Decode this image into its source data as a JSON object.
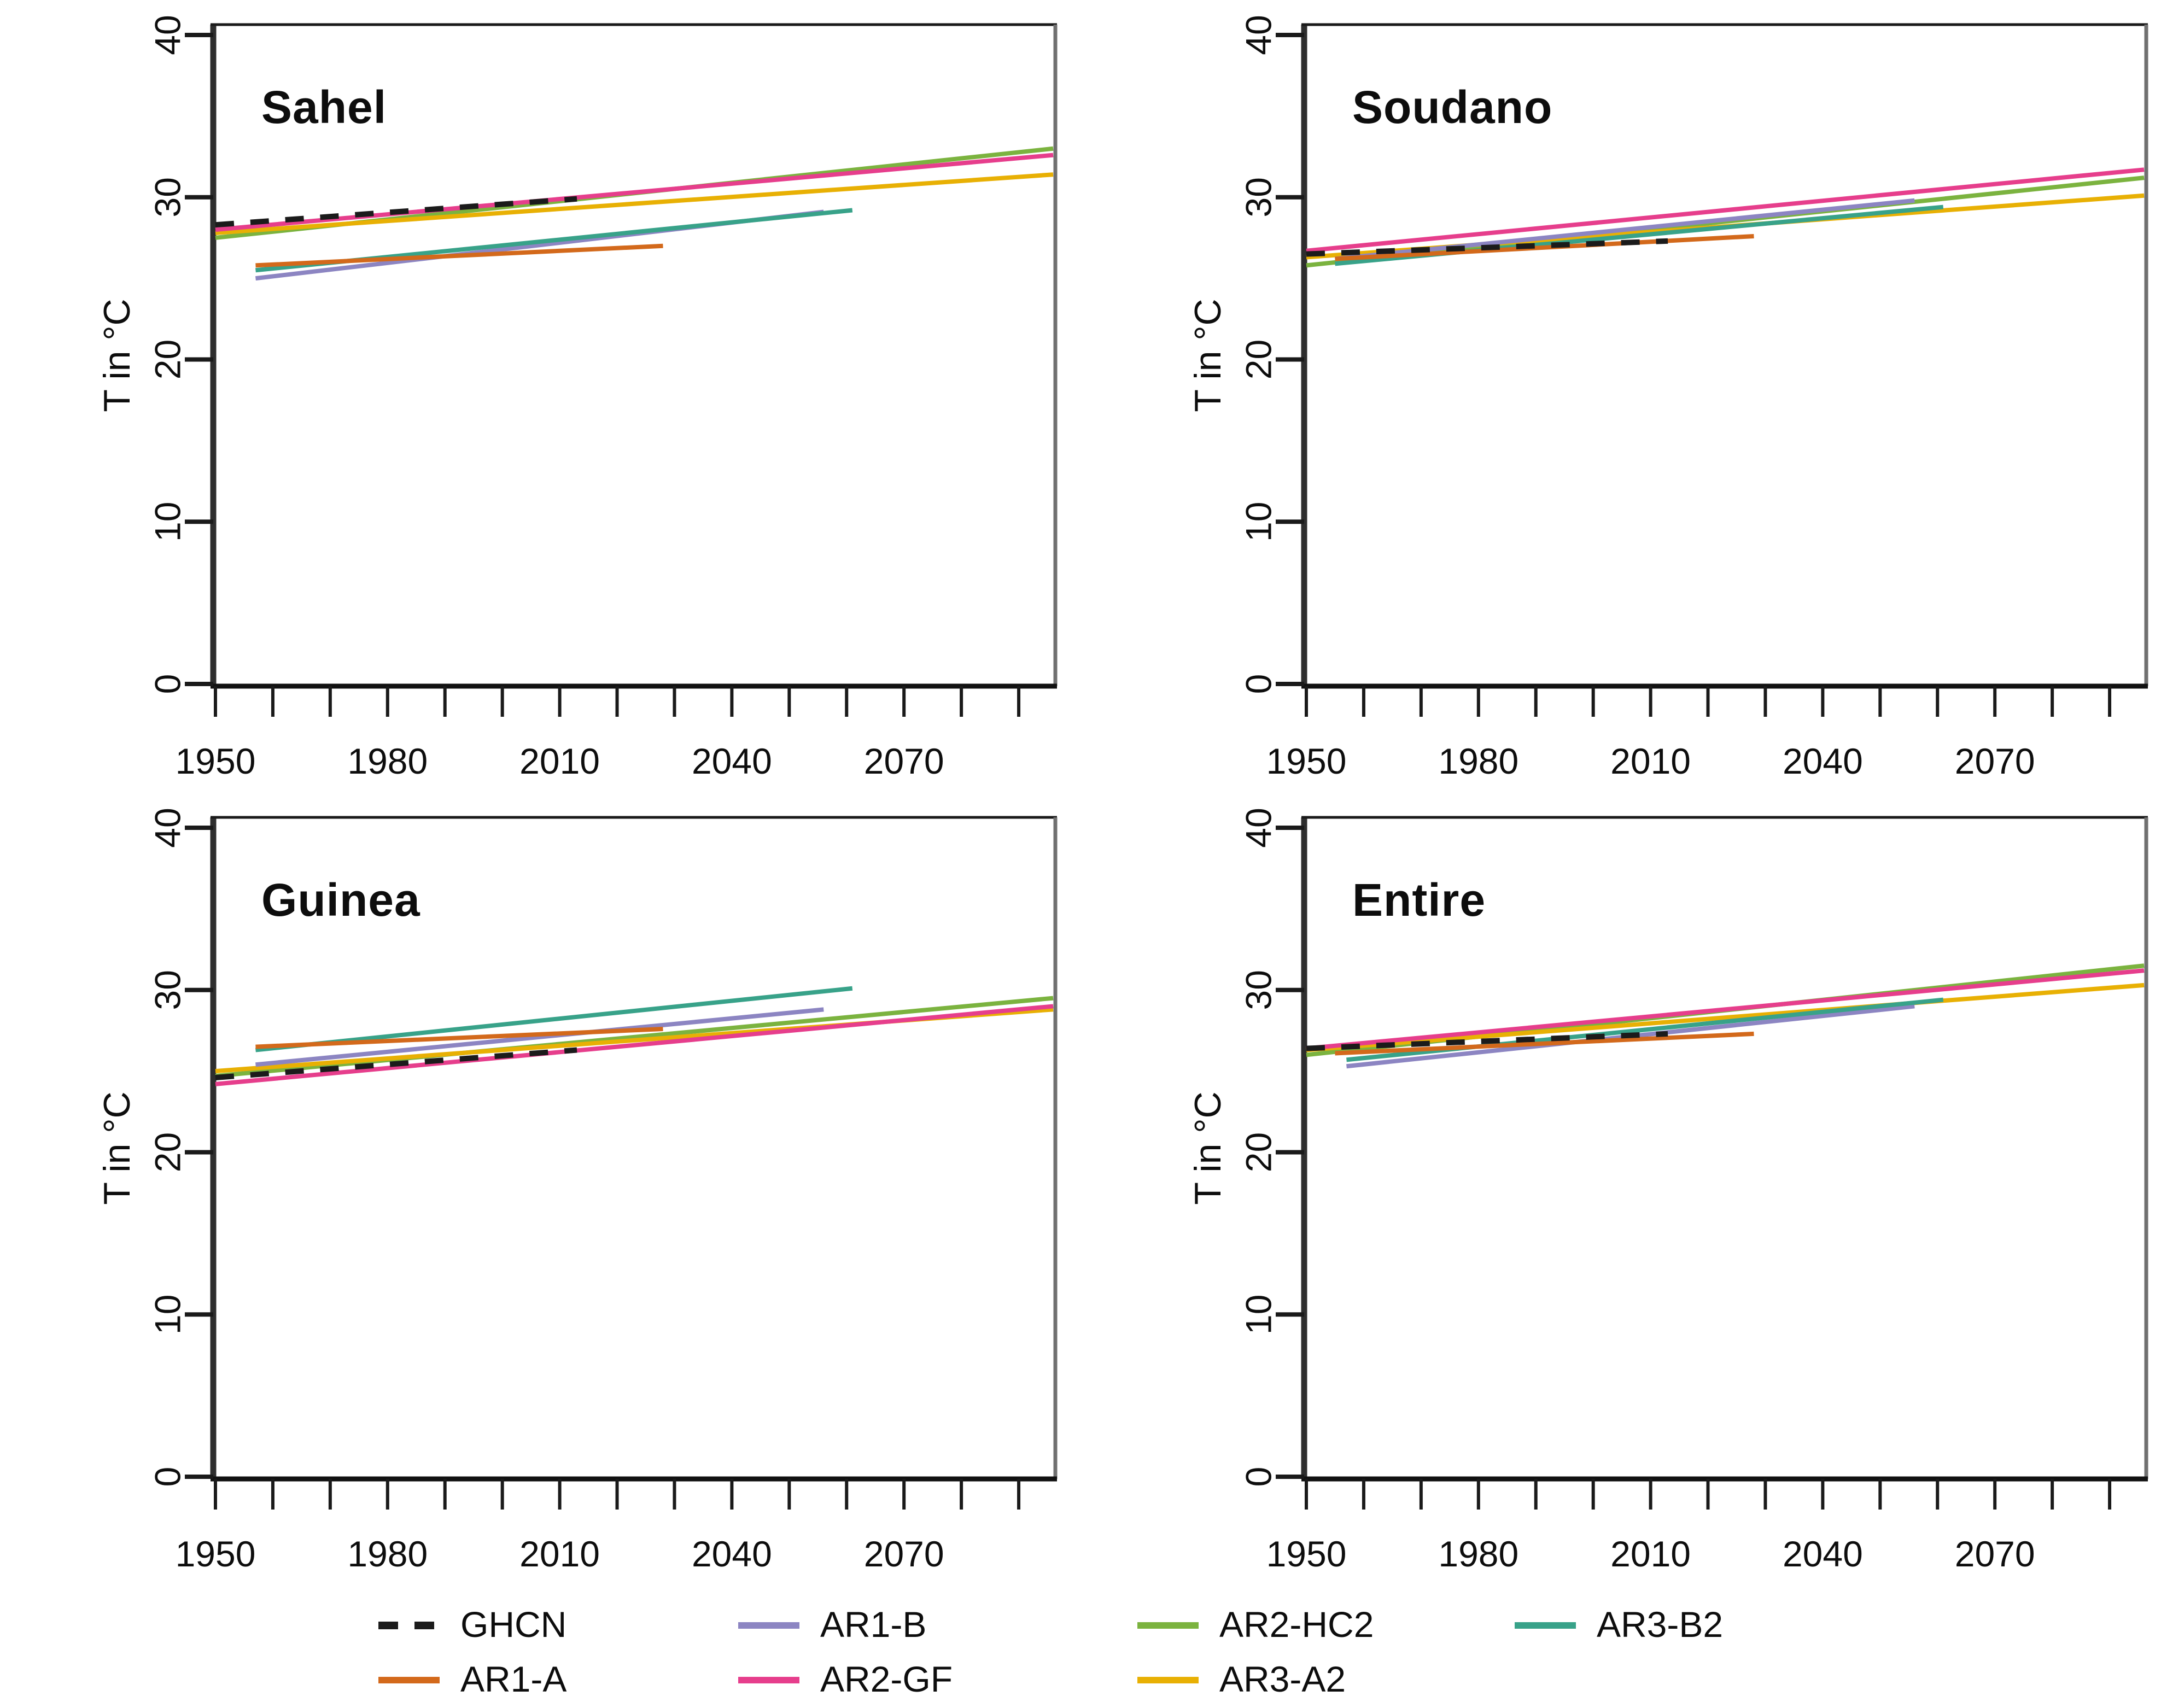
{
  "figure": {
    "type": "multi-panel-line-chart",
    "panel_titles": [
      "Sahel",
      "Soudano",
      "Guinea",
      "Entire"
    ]
  },
  "colors": {
    "ghcn": "#1b1b1b",
    "ar1a": "#D3691B",
    "ar1b": "#8C85C2",
    "ar2gf": "#E63E8C",
    "ar2hc2": "#7BB33F",
    "ar3a2": "#E8B004",
    "ar3b2": "#38A289",
    "frame_dark": "#222222",
    "frame_gray": "#707070",
    "tick": "#1a1a1a",
    "text": "#0d0d0d"
  },
  "legend": {
    "items": [
      {
        "label": "GHCN",
        "color": "ghcn",
        "dashed": true,
        "row": 0,
        "col": 0
      },
      {
        "label": "AR1-B",
        "color": "ar1b",
        "dashed": false,
        "row": 0,
        "col": 1
      },
      {
        "label": "AR2-HC2",
        "color": "ar2hc2",
        "dashed": false,
        "row": 0,
        "col": 2
      },
      {
        "label": "AR3-B2",
        "color": "ar3b2",
        "dashed": false,
        "row": 0,
        "col": 3
      },
      {
        "label": "AR1-A",
        "color": "ar1a",
        "dashed": false,
        "row": 1,
        "col": 0
      },
      {
        "label": "AR2-GF",
        "color": "ar2gf",
        "dashed": false,
        "row": 1,
        "col": 1
      },
      {
        "label": "AR3-A2",
        "color": "ar3a2",
        "dashed": false,
        "row": 1,
        "col": 2
      }
    ]
  },
  "chart_data": [
    {
      "type": "line",
      "title": "Sahel",
      "xlabel": "",
      "ylabel": "T in °C",
      "xlim": [
        1944,
        2097
      ],
      "ylim": [
        0,
        40
      ],
      "x_ticks": [
        1950,
        1960,
        1970,
        1980,
        1990,
        2000,
        2010,
        2020,
        2030,
        2040,
        2050,
        2060,
        2070,
        2080,
        2090
      ],
      "x_tick_labels": [
        1950,
        1980,
        2010,
        2040,
        2070
      ],
      "y_ticks": [
        0,
        10,
        20,
        30,
        40
      ],
      "grid": false,
      "series": [
        {
          "name": "AR2-HC2",
          "color": "ar2hc2",
          "dashed": false,
          "points": [
            [
              1950,
              27.5
            ],
            [
              2096,
              33.0
            ]
          ]
        },
        {
          "name": "AR3-A2",
          "color": "ar3a2",
          "dashed": false,
          "points": [
            [
              1950,
              27.8
            ],
            [
              2096,
              31.4
            ]
          ]
        },
        {
          "name": "AR2-GF",
          "color": "ar2gf",
          "dashed": false,
          "points": [
            [
              1950,
              28.0
            ],
            [
              2096,
              32.6
            ]
          ]
        },
        {
          "name": "AR1-B",
          "color": "ar1b",
          "dashed": false,
          "points": [
            [
              1957,
              25.0
            ],
            [
              2056,
              29.1
            ]
          ]
        },
        {
          "name": "AR3-B2",
          "color": "ar3b2",
          "dashed": false,
          "points": [
            [
              1957,
              25.5
            ],
            [
              2061,
              29.2
            ]
          ]
        },
        {
          "name": "AR1-A",
          "color": "ar1a",
          "dashed": false,
          "points": [
            [
              1957,
              25.8
            ],
            [
              2028,
              27.0
            ]
          ]
        },
        {
          "name": "GHCN",
          "color": "ghcn",
          "dashed": true,
          "points": [
            [
              1950,
              28.3
            ],
            [
              2013,
              29.9
            ]
          ]
        }
      ]
    },
    {
      "type": "line",
      "title": "Soudano",
      "xlabel": "",
      "ylabel": "T in °C",
      "xlim": [
        1944,
        2097
      ],
      "ylim": [
        0,
        40
      ],
      "x_ticks": [
        1950,
        1960,
        1970,
        1980,
        1990,
        2000,
        2010,
        2020,
        2030,
        2040,
        2050,
        2060,
        2070,
        2080,
        2090
      ],
      "x_tick_labels": [
        1950,
        1980,
        2010,
        2040,
        2070
      ],
      "y_ticks": [
        0,
        10,
        20,
        30,
        40
      ],
      "grid": false,
      "series": [
        {
          "name": "AR2-HC2",
          "color": "ar2hc2",
          "dashed": false,
          "points": [
            [
              1950,
              25.8
            ],
            [
              2096,
              31.2
            ]
          ]
        },
        {
          "name": "AR3-A2",
          "color": "ar3a2",
          "dashed": false,
          "points": [
            [
              1950,
              26.3
            ],
            [
              2096,
              30.1
            ]
          ]
        },
        {
          "name": "AR2-GF",
          "color": "ar2gf",
          "dashed": false,
          "points": [
            [
              1950,
              26.7
            ],
            [
              2096,
              31.7
            ]
          ]
        },
        {
          "name": "AR1-B",
          "color": "ar1b",
          "dashed": false,
          "points": [
            [
              1955,
              26.2
            ],
            [
              2056,
              29.8
            ]
          ]
        },
        {
          "name": "AR3-B2",
          "color": "ar3b2",
          "dashed": false,
          "points": [
            [
              1955,
              25.9
            ],
            [
              2061,
              29.4
            ]
          ]
        },
        {
          "name": "AR1-A",
          "color": "ar1a",
          "dashed": false,
          "points": [
            [
              1955,
              26.2
            ],
            [
              2028,
              27.6
            ]
          ]
        },
        {
          "name": "GHCN",
          "color": "ghcn",
          "dashed": true,
          "points": [
            [
              1950,
              26.5
            ],
            [
              2013,
              27.3
            ]
          ]
        }
      ]
    },
    {
      "type": "line",
      "title": "Guinea",
      "xlabel": "",
      "ylabel": "T in °C",
      "xlim": [
        1944,
        2097
      ],
      "ylim": [
        0,
        40
      ],
      "x_ticks": [
        1950,
        1960,
        1970,
        1980,
        1990,
        2000,
        2010,
        2020,
        2030,
        2040,
        2050,
        2060,
        2070,
        2080,
        2090
      ],
      "x_tick_labels": [
        1950,
        1980,
        2010,
        2040,
        2070
      ],
      "y_ticks": [
        0,
        10,
        20,
        30,
        40
      ],
      "grid": false,
      "series": [
        {
          "name": "AR2-HC2",
          "color": "ar2hc2",
          "dashed": false,
          "points": [
            [
              1950,
              24.7
            ],
            [
              2096,
              29.5
            ]
          ]
        },
        {
          "name": "AR3-A2",
          "color": "ar3a2",
          "dashed": false,
          "points": [
            [
              1950,
              25.0
            ],
            [
              2096,
              28.8
            ]
          ]
        },
        {
          "name": "AR2-GF",
          "color": "ar2gf",
          "dashed": false,
          "points": [
            [
              1950,
              24.2
            ],
            [
              2096,
              29.0
            ]
          ]
        },
        {
          "name": "AR1-B",
          "color": "ar1b",
          "dashed": false,
          "points": [
            [
              1957,
              25.4
            ],
            [
              2056,
              28.8
            ]
          ]
        },
        {
          "name": "AR3-B2",
          "color": "ar3b2",
          "dashed": false,
          "points": [
            [
              1957,
              26.3
            ],
            [
              2061,
              30.1
            ]
          ]
        },
        {
          "name": "AR1-A",
          "color": "ar1a",
          "dashed": false,
          "points": [
            [
              1957,
              26.5
            ],
            [
              2028,
              27.6
            ]
          ]
        },
        {
          "name": "GHCN",
          "color": "ghcn",
          "dashed": true,
          "points": [
            [
              1950,
              24.6
            ],
            [
              2013,
              26.3
            ]
          ]
        }
      ]
    },
    {
      "type": "line",
      "title": "Entire",
      "xlabel": "",
      "ylabel": "T in °C",
      "xlim": [
        1944,
        2097
      ],
      "ylim": [
        0,
        40
      ],
      "x_ticks": [
        1950,
        1960,
        1970,
        1980,
        1990,
        2000,
        2010,
        2020,
        2030,
        2040,
        2050,
        2060,
        2070,
        2080,
        2090
      ],
      "x_tick_labels": [
        1950,
        1980,
        2010,
        2040,
        2070
      ],
      "y_ticks": [
        0,
        10,
        20,
        30,
        40
      ],
      "grid": false,
      "series": [
        {
          "name": "AR2-HC2",
          "color": "ar2hc2",
          "dashed": false,
          "points": [
            [
              1950,
              26.0
            ],
            [
              2096,
              31.5
            ]
          ]
        },
        {
          "name": "AR3-A2",
          "color": "ar3a2",
          "dashed": false,
          "points": [
            [
              1950,
              26.3
            ],
            [
              2096,
              30.3
            ]
          ]
        },
        {
          "name": "AR2-GF",
          "color": "ar2gf",
          "dashed": false,
          "points": [
            [
              1950,
              26.4
            ],
            [
              2096,
              31.2
            ]
          ]
        },
        {
          "name": "AR1-B",
          "color": "ar1b",
          "dashed": false,
          "points": [
            [
              1957,
              25.3
            ],
            [
              2056,
              29.0
            ]
          ]
        },
        {
          "name": "AR3-B2",
          "color": "ar3b2",
          "dashed": false,
          "points": [
            [
              1957,
              25.7
            ],
            [
              2061,
              29.4
            ]
          ]
        },
        {
          "name": "AR1-A",
          "color": "ar1a",
          "dashed": false,
          "points": [
            [
              1955,
              26.1
            ],
            [
              2028,
              27.3
            ]
          ]
        },
        {
          "name": "GHCN",
          "color": "ghcn",
          "dashed": true,
          "points": [
            [
              1950,
              26.4
            ],
            [
              2013,
              27.3
            ]
          ]
        }
      ]
    }
  ]
}
